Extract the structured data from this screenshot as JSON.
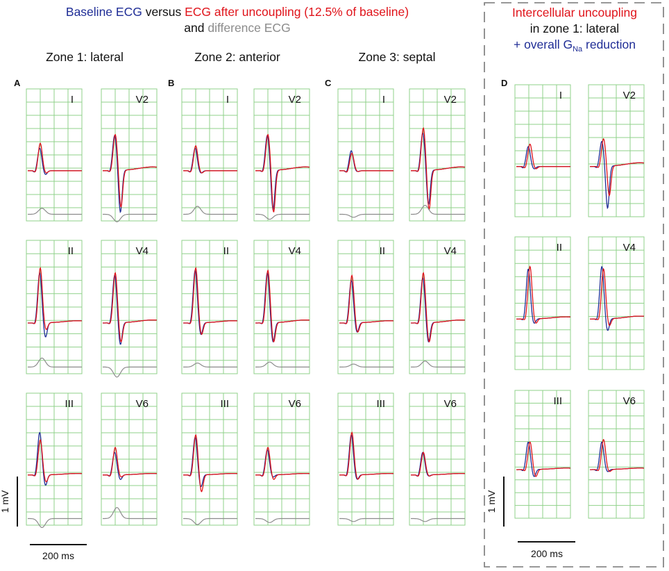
{
  "colors": {
    "baseline": "#1f2d96",
    "uncoupled": "#e0141b",
    "difference": "#8c8c8c",
    "grid": "#8fd18a",
    "text": "#111111",
    "dashed_box": "#777777"
  },
  "header": {
    "segments": [
      {
        "text": "Baseline ECG",
        "color": "#1f2d96"
      },
      {
        "text": " versus ",
        "color": "#111111"
      },
      {
        "text": "ECG after uncoupling (12.5% of baseline)",
        "color": "#e0141b"
      }
    ],
    "line2_segments": [
      {
        "text": "and ",
        "color": "#111111"
      },
      {
        "text": "difference ECG",
        "color": "#8c8c8c"
      }
    ]
  },
  "panel_d_header": {
    "line1": "Intercellular uncoupling",
    "line2": "in zone 1: lateral",
    "line3_prefix": "+ overall G",
    "line3_sub": "Na",
    "line3_suffix": " reduction"
  },
  "zones": [
    {
      "title": "Zone 1: lateral"
    },
    {
      "title": "Zone 2: anterior"
    },
    {
      "title": "Zone 3: septal"
    }
  ],
  "panel_letters": [
    "A",
    "B",
    "C",
    "D"
  ],
  "scale_bars": {
    "voltage_label": "1 mV",
    "time_label": "200 ms"
  },
  "chart_data": {
    "type": "line",
    "title": "Baseline ECG versus ECG after uncoupling (12.5% of baseline) and difference ECG",
    "units": {
      "time": "ms",
      "amplitude": "mV"
    },
    "series_legend": [
      {
        "name": "Baseline ECG",
        "color": "#1f2d96"
      },
      {
        "name": "ECG after uncoupling (12.5% of baseline)",
        "color": "#e0141b"
      },
      {
        "name": "difference ECG",
        "color": "#8c8c8c"
      }
    ],
    "panels": [
      {
        "letter": "A",
        "title": "Zone 1: lateral",
        "has_difference": true,
        "leads": [
          {
            "label": "I",
            "r_base": 0.45,
            "r_unc": 0.55,
            "s_base": -0.08,
            "s_unc": -0.05,
            "diff": 0.12,
            "t": 0.0
          },
          {
            "label": "V2",
            "r_base": 0.7,
            "r_unc": 0.72,
            "s_base": -0.85,
            "s_unc": -0.75,
            "diff": -0.15,
            "t": 0.05
          },
          {
            "label": "II",
            "r_base": 1.0,
            "r_unc": 1.1,
            "s_base": -0.3,
            "s_unc": -0.15,
            "diff": 0.18,
            "t": 0.03
          },
          {
            "label": "V4",
            "r_base": 0.95,
            "r_unc": 1.0,
            "s_base": -0.45,
            "s_unc": -0.4,
            "diff": -0.2,
            "t": 0.04
          },
          {
            "label": "III",
            "r_base": 0.85,
            "r_unc": 0.7,
            "s_base": -0.22,
            "s_unc": -0.15,
            "diff": -0.18,
            "t": 0.02
          },
          {
            "label": "V6",
            "r_base": 0.45,
            "r_unc": 0.55,
            "s_base": -0.1,
            "s_unc": -0.05,
            "diff": 0.22,
            "t": 0.02
          }
        ]
      },
      {
        "letter": "B",
        "title": "Zone 2: anterior",
        "has_difference": true,
        "leads": [
          {
            "label": "I",
            "r_base": 0.45,
            "r_unc": 0.5,
            "s_base": -0.05,
            "s_unc": -0.05,
            "diff": 0.16,
            "t": 0.0
          },
          {
            "label": "V2",
            "r_base": 0.7,
            "r_unc": 0.72,
            "s_base": -0.8,
            "s_unc": -0.85,
            "diff": -0.1,
            "t": 0.05
          },
          {
            "label": "II",
            "r_base": 1.05,
            "r_unc": 1.1,
            "s_base": -0.25,
            "s_unc": -0.25,
            "diff": 0.08,
            "t": 0.03
          },
          {
            "label": "V4",
            "r_base": 1.0,
            "r_unc": 1.05,
            "s_base": -0.4,
            "s_unc": -0.4,
            "diff": 0.1,
            "t": 0.04
          },
          {
            "label": "III",
            "r_base": 0.75,
            "r_unc": 0.8,
            "s_base": -0.25,
            "s_unc": -0.35,
            "diff": -0.12,
            "t": 0.02
          },
          {
            "label": "V6",
            "r_base": 0.5,
            "r_unc": 0.55,
            "s_base": -0.05,
            "s_unc": -0.1,
            "diff": -0.08,
            "t": 0.02
          }
        ]
      },
      {
        "letter": "C",
        "title": "Zone 3: septal",
        "has_difference": true,
        "leads": [
          {
            "label": "I",
            "r_base": 0.4,
            "r_unc": 0.35,
            "s_base": -0.02,
            "s_unc": -0.02,
            "diff": -0.06,
            "t": 0.0
          },
          {
            "label": "V2",
            "r_base": 0.75,
            "r_unc": 0.85,
            "s_base": -0.7,
            "s_unc": -0.8,
            "diff": 0.18,
            "t": 0.05
          },
          {
            "label": "II",
            "r_base": 0.85,
            "r_unc": 0.95,
            "s_base": -0.2,
            "s_unc": -0.2,
            "diff": 0.06,
            "t": 0.03
          },
          {
            "label": "V4",
            "r_base": 0.9,
            "r_unc": 1.0,
            "s_base": -0.4,
            "s_unc": -0.4,
            "diff": 0.12,
            "t": 0.04
          },
          {
            "label": "III",
            "r_base": 0.8,
            "r_unc": 0.85,
            "s_base": -0.1,
            "s_unc": -0.1,
            "diff": -0.06,
            "t": 0.02
          },
          {
            "label": "V6",
            "r_base": 0.45,
            "r_unc": 0.45,
            "s_base": -0.03,
            "s_unc": -0.03,
            "diff": -0.06,
            "t": 0.02
          }
        ]
      },
      {
        "letter": "D",
        "title": "Intercellular uncoupling in zone 1: lateral + overall GNa reduction",
        "has_difference": false,
        "leads": [
          {
            "label": "I",
            "r_base": 0.4,
            "r_unc": 0.45,
            "s_base": -0.05,
            "s_unc": -0.05,
            "t": 0.0
          },
          {
            "label": "V2",
            "r_base": 0.5,
            "r_unc": 0.55,
            "s_base": -0.85,
            "s_unc": -0.6,
            "t": 0.05
          },
          {
            "label": "II",
            "r_base": 1.0,
            "r_unc": 1.05,
            "s_base": -0.1,
            "s_unc": -0.1,
            "t": 0.03
          },
          {
            "label": "V4",
            "r_base": 1.05,
            "r_unc": 1.0,
            "s_base": -0.25,
            "s_unc": -0.15,
            "t": 0.04
          },
          {
            "label": "III",
            "r_base": 0.55,
            "r_unc": 0.55,
            "s_base": -0.15,
            "s_unc": -0.15,
            "t": 0.02
          },
          {
            "label": "V6",
            "r_base": 0.55,
            "r_unc": 0.6,
            "s_base": -0.05,
            "s_unc": -0.05,
            "t": 0.02
          }
        ]
      }
    ]
  }
}
